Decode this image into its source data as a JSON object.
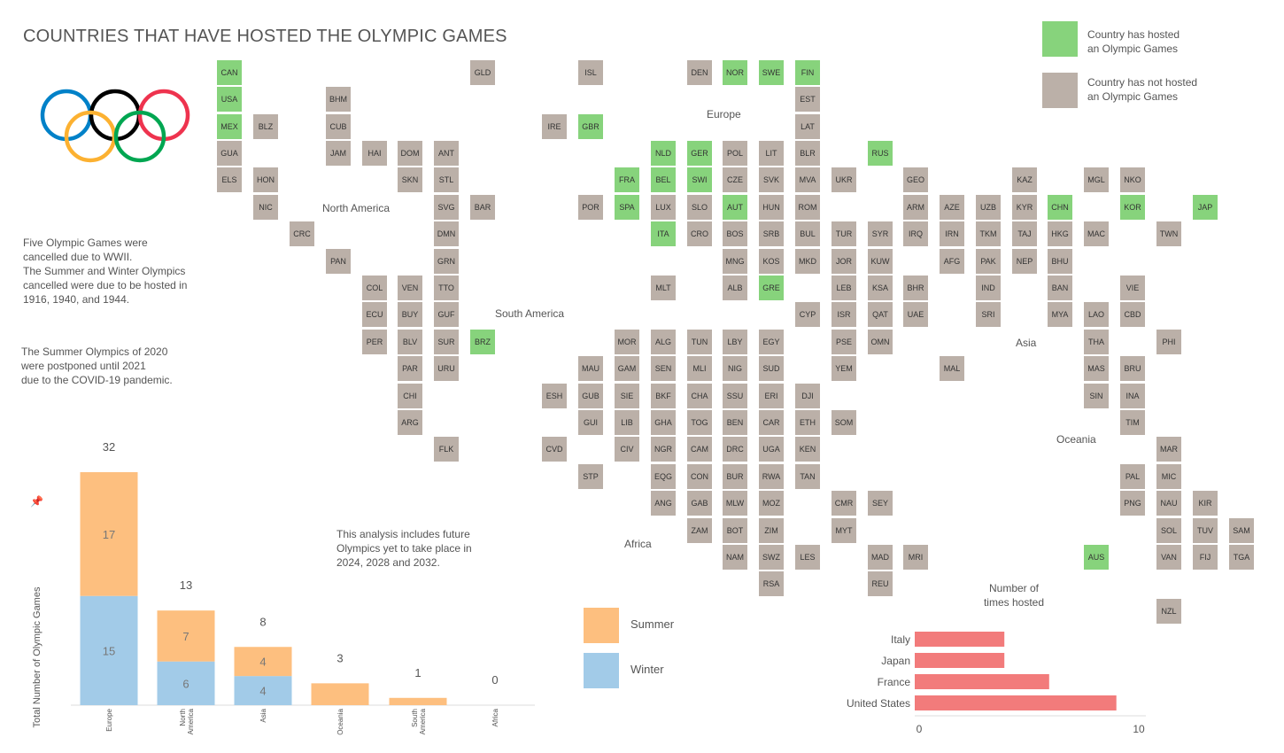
{
  "title": "COUNTRIES THAT HAVE HOSTED THE OLYMPIC GAMES",
  "colors": {
    "hosted": "#87d37c",
    "not_hosted": "#bbb0a8",
    "summer": "#fdbf7f",
    "winter": "#a2cbe8",
    "hbar": "#f27b7b",
    "rings": [
      "#0081c8",
      "#fcb131",
      "#000000",
      "#00a651",
      "#ee334e"
    ]
  },
  "legend": {
    "hosted": "Country has hosted\nan Olympic Games",
    "not_hosted": "Country has not hosted\nan Olympic Games"
  },
  "notes": {
    "wwii": "Five Olympic Games were\ncancelled due to WWII.\nThe Summer and Winter Olympics\ncancelled were due to be hosted in\n1916, 1940, and 1944.",
    "covid": "The Summer Olympics of 2020\nwere postponed until 2021\ndue to the COVID-19 pandemic.",
    "future": "This analysis includes future\nOlympics yet to take place in\n2024, 2028 and 2032."
  },
  "regions": {
    "north_america": "North America",
    "south_america": "South America",
    "europe": "Europe",
    "africa": "Africa",
    "asia": "Asia",
    "oceania": "Oceania"
  },
  "map": {
    "hosted": [
      "CAN",
      "USA",
      "MEX",
      "NOR",
      "SWE",
      "FIN",
      "GBR",
      "NLD",
      "GER",
      "BEL",
      "SWI",
      "FRA",
      "SPA",
      "AUT",
      "ITA",
      "GRE",
      "RUS",
      "BRZ",
      "CHN",
      "KOR",
      "JAP",
      "AUS"
    ],
    "rows": [
      {
        "y": 82,
        "tiles": [
          [
            "CAN",
            259
          ],
          [
            "GLD",
            545
          ],
          [
            "ISL",
            667
          ],
          [
            "DEN",
            790
          ],
          [
            "NOR",
            830
          ],
          [
            "SWE",
            871
          ],
          [
            "FIN",
            912
          ]
        ]
      },
      {
        "y": 112,
        "tiles": [
          [
            "USA",
            259
          ],
          [
            "BHM",
            382
          ],
          [
            "EST",
            912
          ]
        ]
      },
      {
        "y": 143,
        "tiles": [
          [
            "MEX",
            259
          ],
          [
            "BLZ",
            300
          ],
          [
            "CUB",
            382
          ],
          [
            "IRE",
            626
          ],
          [
            "GBR",
            667
          ],
          [
            "LAT",
            912
          ]
        ]
      },
      {
        "y": 173,
        "tiles": [
          [
            "GUA",
            259
          ],
          [
            "JAM",
            382
          ],
          [
            "HAI",
            423
          ],
          [
            "DOM",
            463
          ],
          [
            "ANT",
            504
          ],
          [
            "NLD",
            749
          ],
          [
            "GER",
            790
          ],
          [
            "POL",
            830
          ],
          [
            "LIT",
            871
          ],
          [
            "BLR",
            912
          ],
          [
            "RUS",
            994
          ]
        ]
      },
      {
        "y": 203,
        "tiles": [
          [
            "ELS",
            259
          ],
          [
            "HON",
            300
          ],
          [
            "SKN",
            463
          ],
          [
            "STL",
            504
          ],
          [
            "FRA",
            708
          ],
          [
            "BEL",
            749
          ],
          [
            "SWI",
            790
          ],
          [
            "CZE",
            830
          ],
          [
            "SVK",
            871
          ],
          [
            "MVA",
            912
          ],
          [
            "UKR",
            953
          ],
          [
            "GEO",
            1034
          ],
          [
            "KAZ",
            1157
          ],
          [
            "MGL",
            1238
          ],
          [
            "NKO",
            1279
          ]
        ]
      },
      {
        "y": 234,
        "tiles": [
          [
            "NIC",
            300
          ],
          [
            "SVG",
            504
          ],
          [
            "BAR",
            545
          ],
          [
            "POR",
            667
          ],
          [
            "SPA",
            708
          ],
          [
            "LUX",
            749
          ],
          [
            "SLO",
            790
          ],
          [
            "AUT",
            830
          ],
          [
            "HUN",
            871
          ],
          [
            "ROM",
            912
          ],
          [
            "ARM",
            1034
          ],
          [
            "AZE",
            1075
          ],
          [
            "UZB",
            1116
          ],
          [
            "KYR",
            1157
          ],
          [
            "CHN",
            1197
          ],
          [
            "KOR",
            1279
          ],
          [
            "JAP",
            1361
          ]
        ]
      },
      {
        "y": 264,
        "tiles": [
          [
            "CRC",
            341
          ],
          [
            "DMN",
            504
          ],
          [
            "ITA",
            749
          ],
          [
            "CRO",
            790
          ],
          [
            "BOS",
            830
          ],
          [
            "SRB",
            871
          ],
          [
            "BUL",
            912
          ],
          [
            "TUR",
            953
          ],
          [
            "SYR",
            994
          ],
          [
            "IRQ",
            1034
          ],
          [
            "IRN",
            1075
          ],
          [
            "TKM",
            1116
          ],
          [
            "TAJ",
            1157
          ],
          [
            "HKG",
            1197
          ],
          [
            "MAC",
            1238
          ],
          [
            "TWN",
            1320
          ]
        ]
      },
      {
        "y": 295,
        "tiles": [
          [
            "PAN",
            382
          ],
          [
            "GRN",
            504
          ],
          [
            "MNG",
            830
          ],
          [
            "KOS",
            871
          ],
          [
            "MKD",
            912
          ],
          [
            "JOR",
            953
          ],
          [
            "KUW",
            994
          ],
          [
            "AFG",
            1075
          ],
          [
            "PAK",
            1116
          ],
          [
            "NEP",
            1157
          ],
          [
            "BHU",
            1197
          ]
        ]
      },
      {
        "y": 325,
        "tiles": [
          [
            "COL",
            423
          ],
          [
            "VEN",
            463
          ],
          [
            "TTO",
            504
          ],
          [
            "MLT",
            749
          ],
          [
            "ALB",
            830
          ],
          [
            "GRE",
            871
          ],
          [
            "LEB",
            953
          ],
          [
            "KSA",
            994
          ],
          [
            "BHR",
            1034
          ],
          [
            "IND",
            1116
          ],
          [
            "BAN",
            1197
          ],
          [
            "VIE",
            1279
          ]
        ]
      },
      {
        "y": 355,
        "tiles": [
          [
            "ECU",
            423
          ],
          [
            "BUY",
            463
          ],
          [
            "GUF",
            504
          ],
          [
            "CYP",
            912
          ],
          [
            "ISR",
            953
          ],
          [
            "QAT",
            994
          ],
          [
            "UAE",
            1034
          ],
          [
            "SRI",
            1116
          ],
          [
            "MYA",
            1197
          ],
          [
            "LAO",
            1238
          ],
          [
            "CBD",
            1279
          ]
        ]
      },
      {
        "y": 386,
        "tiles": [
          [
            "PER",
            423
          ],
          [
            "BLV",
            463
          ],
          [
            "SUR",
            504
          ],
          [
            "BRZ",
            545
          ],
          [
            "MOR",
            708
          ],
          [
            "ALG",
            749
          ],
          [
            "TUN",
            790
          ],
          [
            "LBY",
            830
          ],
          [
            "EGY",
            871
          ],
          [
            "PSE",
            953
          ],
          [
            "OMN",
            994
          ],
          [
            "THA",
            1238
          ],
          [
            "PHI",
            1320
          ]
        ]
      },
      {
        "y": 416,
        "tiles": [
          [
            "PAR",
            463
          ],
          [
            "URU",
            504
          ],
          [
            "MAU",
            667
          ],
          [
            "GAM",
            708
          ],
          [
            "SEN",
            749
          ],
          [
            "MLI",
            790
          ],
          [
            "NIG",
            830
          ],
          [
            "SUD",
            871
          ],
          [
            "YEM",
            953
          ],
          [
            "MAL",
            1075
          ],
          [
            "MAS",
            1238
          ],
          [
            "BRU",
            1279
          ]
        ]
      },
      {
        "y": 447,
        "tiles": [
          [
            "CHI",
            463
          ],
          [
            "ESH",
            626
          ],
          [
            "GUB",
            667
          ],
          [
            "SIE",
            708
          ],
          [
            "BKF",
            749
          ],
          [
            "CHA",
            790
          ],
          [
            "SSU",
            830
          ],
          [
            "ERI",
            871
          ],
          [
            "DJI",
            912
          ],
          [
            "SIN",
            1238
          ],
          [
            "INA",
            1279
          ]
        ]
      },
      {
        "y": 477,
        "tiles": [
          [
            "ARG",
            463
          ],
          [
            "GUI",
            667
          ],
          [
            "LIB",
            708
          ],
          [
            "GHA",
            749
          ],
          [
            "TOG",
            790
          ],
          [
            "BEN",
            830
          ],
          [
            "CAR",
            871
          ],
          [
            "ETH",
            912
          ],
          [
            "SOM",
            953
          ],
          [
            "TIM",
            1279
          ]
        ]
      },
      {
        "y": 507,
        "tiles": [
          [
            "FLK",
            504
          ],
          [
            "CVD",
            626
          ],
          [
            "CIV",
            708
          ],
          [
            "NGR",
            749
          ],
          [
            "CAM",
            790
          ],
          [
            "DRC",
            830
          ],
          [
            "UGA",
            871
          ],
          [
            "KEN",
            912
          ],
          [
            "MAR",
            1320
          ]
        ]
      },
      {
        "y": 538,
        "tiles": [
          [
            "STP",
            667
          ],
          [
            "EQG",
            749
          ],
          [
            "CON",
            790
          ],
          [
            "BUR",
            830
          ],
          [
            "RWA",
            871
          ],
          [
            "TAN",
            912
          ],
          [
            "PAL",
            1279
          ],
          [
            "MIC",
            1320
          ]
        ]
      },
      {
        "y": 568,
        "tiles": [
          [
            "ANG",
            749
          ],
          [
            "GAB",
            790
          ],
          [
            "MLW",
            830
          ],
          [
            "MOZ",
            871
          ],
          [
            "CMR",
            953
          ],
          [
            "SEY",
            994
          ],
          [
            "PNG",
            1279
          ],
          [
            "NAU",
            1320
          ],
          [
            "KIR",
            1361
          ]
        ]
      },
      {
        "y": 599,
        "tiles": [
          [
            "ZAM",
            790
          ],
          [
            "BOT",
            830
          ],
          [
            "ZIM",
            871
          ],
          [
            "MYT",
            953
          ],
          [
            "SOL",
            1320
          ],
          [
            "TUV",
            1361
          ],
          [
            "SAM",
            1402
          ]
        ]
      },
      {
        "y": 629,
        "tiles": [
          [
            "NAM",
            830
          ],
          [
            "SWZ",
            871
          ],
          [
            "LES",
            912
          ],
          [
            "MAD",
            994
          ],
          [
            "MRI",
            1034
          ],
          [
            "AUS",
            1238
          ],
          [
            "VAN",
            1320
          ],
          [
            "FIJ",
            1361
          ],
          [
            "TGA",
            1402
          ]
        ]
      },
      {
        "y": 659,
        "tiles": [
          [
            "RSA",
            871
          ],
          [
            "REU",
            994
          ]
        ]
      },
      {
        "y": 690,
        "tiles": [
          [
            "NZL",
            1320
          ]
        ]
      }
    ]
  },
  "chart_data": [
    {
      "type": "bar",
      "stacked": true,
      "categories": [
        "Europe",
        "North\nAmerica",
        "Asia",
        "Oceania",
        "South\nAmerica",
        "Africa"
      ],
      "series": [
        {
          "name": "Winter",
          "values": [
            15,
            6,
            4,
            0,
            0,
            0
          ]
        },
        {
          "name": "Summer",
          "values": [
            17,
            7,
            4,
            3,
            1,
            0
          ]
        }
      ],
      "totals": [
        32,
        13,
        8,
        3,
        1,
        0
      ],
      "ylabel": "Total Number of Olympic Games",
      "ylim": [
        0,
        32
      ],
      "legend": [
        "Summer",
        "Winter"
      ]
    },
    {
      "type": "bar",
      "orientation": "horizontal",
      "title": "Number of\ntimes hosted",
      "categories": [
        "Italy",
        "Japan",
        "France",
        "United States"
      ],
      "values": [
        4,
        4,
        6,
        9
      ],
      "xlim": [
        0,
        10
      ],
      "xticks": [
        "0",
        "10"
      ]
    }
  ]
}
